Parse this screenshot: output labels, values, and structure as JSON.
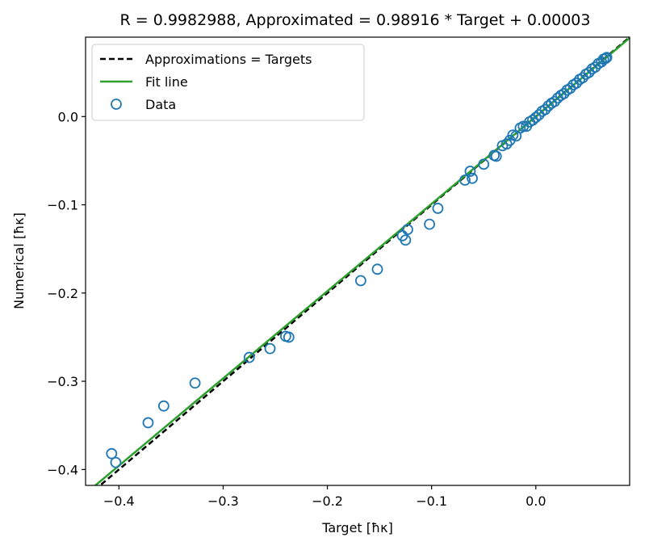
{
  "chart_data": {
    "type": "scatter",
    "title": "R = 0.9982988, Approximated = 0.98916 * Target + 0.00003",
    "xlabel": "Target [ħκ]",
    "ylabel": "Numerical [ħκ]",
    "xlim": [
      -0.432,
      0.09
    ],
    "ylim": [
      -0.418,
      0.09
    ],
    "xticks": [
      -0.4,
      -0.3,
      -0.2,
      -0.1,
      0.0
    ],
    "xtick_labels": [
      "−0.4",
      "−0.3",
      "−0.2",
      "−0.1",
      "0.0"
    ],
    "yticks": [
      -0.4,
      -0.3,
      -0.2,
      -0.1,
      0.0
    ],
    "ytick_labels": [
      "−0.4",
      "−0.3",
      "−0.2",
      "−0.1",
      "0.0"
    ],
    "grid": false,
    "legend_position": "top-left",
    "fit": {
      "slope": 0.98916,
      "intercept": 3e-05
    },
    "series": [
      {
        "name": "Approximations = Targets",
        "kind": "line",
        "style": "dashed",
        "color": "#000000"
      },
      {
        "name": "Fit line",
        "kind": "line",
        "style": "solid",
        "color": "#2ca02c"
      },
      {
        "name": "Data",
        "kind": "scatter",
        "color": "#1f77b4",
        "points": [
          [
            -0.407,
            -0.382
          ],
          [
            -0.403,
            -0.392
          ],
          [
            -0.372,
            -0.347
          ],
          [
            -0.357,
            -0.328
          ],
          [
            -0.327,
            -0.302
          ],
          [
            -0.275,
            -0.273
          ],
          [
            -0.255,
            -0.263
          ],
          [
            -0.24,
            -0.249
          ],
          [
            -0.237,
            -0.25
          ],
          [
            -0.168,
            -0.186
          ],
          [
            -0.152,
            -0.173
          ],
          [
            -0.128,
            -0.135
          ],
          [
            -0.125,
            -0.14
          ],
          [
            -0.123,
            -0.128
          ],
          [
            -0.102,
            -0.122
          ],
          [
            -0.094,
            -0.104
          ],
          [
            -0.068,
            -0.072
          ],
          [
            -0.063,
            -0.062
          ],
          [
            -0.061,
            -0.07
          ],
          [
            -0.05,
            -0.054
          ],
          [
            -0.04,
            -0.044
          ],
          [
            -0.038,
            -0.045
          ],
          [
            -0.032,
            -0.033
          ],
          [
            -0.028,
            -0.031
          ],
          [
            -0.025,
            -0.027
          ],
          [
            -0.022,
            -0.021
          ],
          [
            -0.019,
            -0.022
          ],
          [
            -0.015,
            -0.013
          ],
          [
            -0.012,
            -0.011
          ],
          [
            -0.009,
            -0.011
          ],
          [
            -0.006,
            -0.006
          ],
          [
            -0.003,
            -0.004
          ],
          [
            0.0,
            -0.001
          ],
          [
            0.003,
            0.002
          ],
          [
            0.006,
            0.006
          ],
          [
            0.009,
            0.008
          ],
          [
            0.012,
            0.012
          ],
          [
            0.015,
            0.015
          ],
          [
            0.018,
            0.017
          ],
          [
            0.021,
            0.021
          ],
          [
            0.024,
            0.024
          ],
          [
            0.027,
            0.026
          ],
          [
            0.03,
            0.03
          ],
          [
            0.033,
            0.032
          ],
          [
            0.036,
            0.036
          ],
          [
            0.039,
            0.038
          ],
          [
            0.042,
            0.042
          ],
          [
            0.045,
            0.044
          ],
          [
            0.048,
            0.048
          ],
          [
            0.051,
            0.05
          ],
          [
            0.054,
            0.054
          ],
          [
            0.057,
            0.056
          ],
          [
            0.06,
            0.06
          ],
          [
            0.063,
            0.062
          ],
          [
            0.065,
            0.065
          ],
          [
            0.067,
            0.066
          ],
          [
            0.068,
            0.067
          ]
        ]
      }
    ]
  }
}
